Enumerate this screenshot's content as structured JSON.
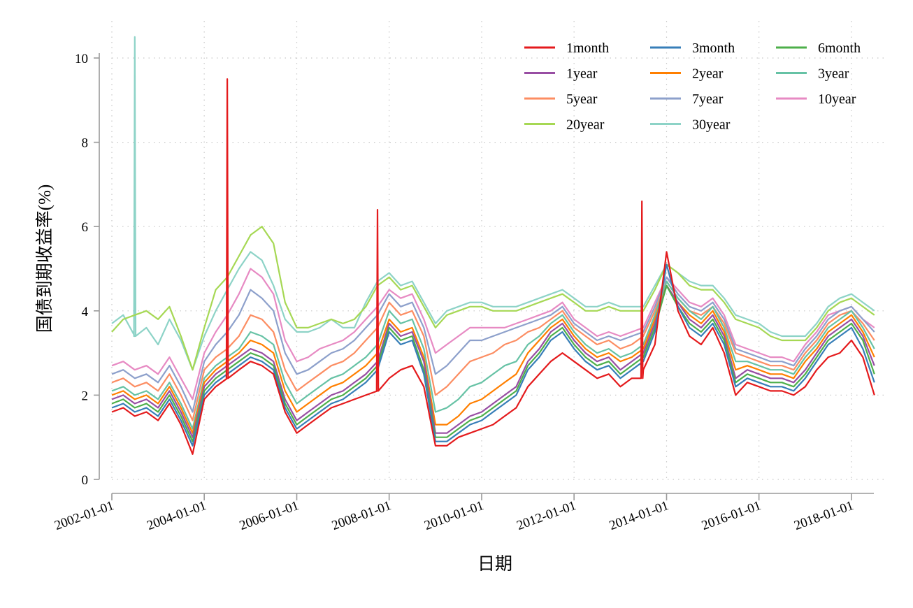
{
  "chart_data": {
    "type": "line",
    "title": "",
    "xlabel": "日期",
    "ylabel": "国债到期收益率(%)",
    "xlim": [
      "2002-01-01",
      "2018-07-01"
    ],
    "ylim": [
      -0.3,
      10.6
    ],
    "x_ticks": [
      "2002-01-01",
      "2004-01-01",
      "2006-01-01",
      "2008-01-01",
      "2010-01-01",
      "2012-01-01",
      "2014-01-01",
      "2016-01-01",
      "2018-01-01"
    ],
    "y_ticks": [
      "0",
      "2",
      "4",
      "6",
      "8",
      "10"
    ],
    "grid": true,
    "legend_position": "top-right",
    "x": [
      "2002-01-01",
      "2002-04-01",
      "2002-07-01",
      "2002-10-01",
      "2003-01-01",
      "2003-04-01",
      "2003-07-01",
      "2003-10-01",
      "2004-01-01",
      "2004-04-01",
      "2004-07-01",
      "2004-10-01",
      "2005-01-01",
      "2005-04-01",
      "2005-07-01",
      "2005-10-01",
      "2006-01-01",
      "2006-04-01",
      "2006-07-01",
      "2006-10-01",
      "2007-01-01",
      "2007-04-01",
      "2007-07-01",
      "2007-10-01",
      "2008-01-01",
      "2008-04-01",
      "2008-07-01",
      "2008-10-01",
      "2009-01-01",
      "2009-04-01",
      "2009-07-01",
      "2009-10-01",
      "2010-01-01",
      "2010-04-01",
      "2010-07-01",
      "2010-10-01",
      "2011-01-01",
      "2011-04-01",
      "2011-07-01",
      "2011-10-01",
      "2012-01-01",
      "2012-04-01",
      "2012-07-01",
      "2012-10-01",
      "2013-01-01",
      "2013-04-01",
      "2013-07-01",
      "2013-10-01",
      "2014-01-01",
      "2014-04-01",
      "2014-07-01",
      "2014-10-01",
      "2015-01-01",
      "2015-04-01",
      "2015-07-01",
      "2015-10-01",
      "2016-01-01",
      "2016-04-01",
      "2016-07-01",
      "2016-10-01",
      "2017-01-01",
      "2017-04-01",
      "2017-07-01",
      "2017-10-01",
      "2018-01-01",
      "2018-04-01",
      "2018-07-01"
    ],
    "series": [
      {
        "name": "1month",
        "color": "#e41a1c",
        "values": [
          1.6,
          1.7,
          1.5,
          1.6,
          1.4,
          1.8,
          1.3,
          0.6,
          1.9,
          2.2,
          2.4,
          2.6,
          2.8,
          2.7,
          2.5,
          1.6,
          1.1,
          1.3,
          1.5,
          1.7,
          1.8,
          1.9,
          2.0,
          2.1,
          2.4,
          2.6,
          2.7,
          2.2,
          0.8,
          0.8,
          1.0,
          1.1,
          1.2,
          1.3,
          1.5,
          1.7,
          2.2,
          2.5,
          2.8,
          3.0,
          2.8,
          2.6,
          2.4,
          2.5,
          2.2,
          2.4,
          2.6,
          3.2,
          5.4,
          4.0,
          3.4,
          3.2,
          3.6,
          3.0,
          2.0,
          2.3,
          2.2,
          2.1,
          2.1,
          2.0,
          2.2,
          2.6,
          2.9,
          3.0,
          3.3,
          2.9,
          2.0
        ]
      },
      {
        "name": "3month",
        "color": "#377eb8",
        "values": [
          1.7,
          1.8,
          1.6,
          1.7,
          1.5,
          1.9,
          1.4,
          0.8,
          2.0,
          2.3,
          2.5,
          2.7,
          2.9,
          2.8,
          2.6,
          1.7,
          1.2,
          1.4,
          1.6,
          1.8,
          1.9,
          2.1,
          2.3,
          2.6,
          3.5,
          3.2,
          3.3,
          2.5,
          0.9,
          0.9,
          1.1,
          1.3,
          1.4,
          1.6,
          1.8,
          2.0,
          2.6,
          2.9,
          3.3,
          3.5,
          3.1,
          2.8,
          2.6,
          2.7,
          2.4,
          2.6,
          2.8,
          3.5,
          5.1,
          4.1,
          3.6,
          3.4,
          3.7,
          3.2,
          2.2,
          2.4,
          2.3,
          2.2,
          2.2,
          2.1,
          2.4,
          2.8,
          3.2,
          3.4,
          3.6,
          3.1,
          2.3
        ]
      },
      {
        "name": "6month",
        "color": "#4daf4a",
        "values": [
          1.8,
          1.9,
          1.7,
          1.8,
          1.6,
          2.0,
          1.5,
          0.9,
          2.1,
          2.4,
          2.6,
          2.8,
          3.0,
          2.9,
          2.7,
          1.8,
          1.3,
          1.5,
          1.7,
          1.9,
          2.0,
          2.2,
          2.4,
          2.7,
          3.6,
          3.3,
          3.4,
          2.6,
          1.0,
          1.0,
          1.2,
          1.4,
          1.5,
          1.7,
          1.9,
          2.1,
          2.7,
          3.0,
          3.4,
          3.6,
          3.2,
          2.9,
          2.7,
          2.8,
          2.5,
          2.7,
          2.9,
          3.6,
          4.6,
          4.1,
          3.7,
          3.5,
          3.8,
          3.3,
          2.3,
          2.5,
          2.4,
          2.3,
          2.3,
          2.2,
          2.5,
          2.9,
          3.3,
          3.5,
          3.7,
          3.3,
          2.5
        ]
      },
      {
        "name": "1year",
        "color": "#984ea3",
        "values": [
          1.9,
          2.0,
          1.8,
          1.9,
          1.7,
          2.1,
          1.6,
          1.0,
          2.2,
          2.5,
          2.7,
          2.9,
          3.1,
          3.0,
          2.8,
          1.9,
          1.4,
          1.6,
          1.8,
          2.0,
          2.1,
          2.3,
          2.5,
          2.8,
          3.7,
          3.4,
          3.5,
          2.8,
          1.1,
          1.1,
          1.3,
          1.5,
          1.6,
          1.8,
          2.0,
          2.2,
          2.8,
          3.1,
          3.5,
          3.7,
          3.3,
          3.0,
          2.8,
          2.9,
          2.6,
          2.8,
          3.0,
          3.7,
          4.6,
          4.2,
          3.8,
          3.6,
          3.9,
          3.4,
          2.4,
          2.6,
          2.5,
          2.4,
          2.4,
          2.3,
          2.6,
          3.0,
          3.4,
          3.6,
          3.8,
          3.4,
          2.7
        ]
      },
      {
        "name": "2year",
        "color": "#ff7f00",
        "values": [
          2.0,
          2.1,
          1.9,
          2.0,
          1.8,
          2.2,
          1.7,
          1.1,
          2.3,
          2.6,
          2.8,
          3.0,
          3.3,
          3.2,
          3.0,
          2.1,
          1.6,
          1.8,
          2.0,
          2.2,
          2.3,
          2.5,
          2.7,
          3.0,
          3.8,
          3.5,
          3.6,
          2.9,
          1.3,
          1.3,
          1.5,
          1.8,
          1.9,
          2.1,
          2.3,
          2.5,
          3.0,
          3.3,
          3.6,
          3.8,
          3.4,
          3.1,
          2.9,
          3.0,
          2.8,
          2.9,
          3.1,
          3.8,
          4.6,
          4.2,
          3.9,
          3.7,
          4.0,
          3.5,
          2.6,
          2.7,
          2.6,
          2.5,
          2.5,
          2.4,
          2.8,
          3.1,
          3.5,
          3.7,
          3.9,
          3.5,
          2.9
        ]
      },
      {
        "name": "3year",
        "color": "#66c2a5",
        "values": [
          2.1,
          2.2,
          2.0,
          2.1,
          1.9,
          2.3,
          1.8,
          1.2,
          2.4,
          2.7,
          2.9,
          3.1,
          3.5,
          3.4,
          3.2,
          2.3,
          1.8,
          2.0,
          2.2,
          2.4,
          2.5,
          2.7,
          2.9,
          3.2,
          4.0,
          3.7,
          3.8,
          3.1,
          1.6,
          1.7,
          1.9,
          2.2,
          2.3,
          2.5,
          2.7,
          2.8,
          3.2,
          3.4,
          3.7,
          3.9,
          3.5,
          3.2,
          3.0,
          3.1,
          2.9,
          3.0,
          3.2,
          3.9,
          4.7,
          4.3,
          4.0,
          3.8,
          4.1,
          3.6,
          2.8,
          2.8,
          2.7,
          2.6,
          2.6,
          2.5,
          2.9,
          3.2,
          3.6,
          3.8,
          4.0,
          3.6,
          3.1
        ]
      },
      {
        "name": "5year",
        "color": "#fc8d62",
        "values": [
          2.3,
          2.4,
          2.2,
          2.3,
          2.1,
          2.5,
          2.0,
          1.4,
          2.6,
          2.9,
          3.1,
          3.4,
          3.9,
          3.8,
          3.5,
          2.6,
          2.1,
          2.3,
          2.5,
          2.7,
          2.8,
          3.0,
          3.3,
          3.6,
          4.2,
          3.9,
          4.0,
          3.4,
          2.0,
          2.2,
          2.5,
          2.8,
          2.9,
          3.0,
          3.2,
          3.3,
          3.5,
          3.6,
          3.8,
          4.0,
          3.6,
          3.4,
          3.2,
          3.3,
          3.1,
          3.2,
          3.4,
          4.0,
          4.7,
          4.3,
          4.0,
          3.9,
          4.1,
          3.7,
          3.0,
          2.9,
          2.8,
          2.7,
          2.7,
          2.6,
          3.0,
          3.3,
          3.7,
          3.9,
          4.0,
          3.7,
          3.3
        ]
      },
      {
        "name": "7year",
        "color": "#8da0cb",
        "values": [
          2.5,
          2.6,
          2.4,
          2.5,
          2.3,
          2.7,
          2.2,
          1.6,
          2.8,
          3.2,
          3.5,
          3.9,
          4.5,
          4.3,
          4.0,
          3.0,
          2.5,
          2.6,
          2.8,
          3.0,
          3.1,
          3.3,
          3.6,
          3.9,
          4.4,
          4.1,
          4.2,
          3.6,
          2.5,
          2.7,
          3.0,
          3.3,
          3.3,
          3.4,
          3.5,
          3.6,
          3.7,
          3.8,
          3.9,
          4.1,
          3.7,
          3.5,
          3.3,
          3.4,
          3.3,
          3.4,
          3.5,
          4.1,
          4.8,
          4.4,
          4.1,
          4.0,
          4.2,
          3.8,
          3.1,
          3.0,
          2.9,
          2.8,
          2.8,
          2.7,
          3.1,
          3.4,
          3.8,
          4.0,
          4.1,
          3.8,
          3.5
        ]
      },
      {
        "name": "10year",
        "color": "#e78ac3",
        "values": [
          2.7,
          2.8,
          2.6,
          2.7,
          2.5,
          2.9,
          2.4,
          1.9,
          3.0,
          3.5,
          3.9,
          4.4,
          5.0,
          4.8,
          4.4,
          3.3,
          2.8,
          2.9,
          3.1,
          3.2,
          3.3,
          3.5,
          3.8,
          4.1,
          4.5,
          4.3,
          4.4,
          3.8,
          3.0,
          3.2,
          3.4,
          3.6,
          3.6,
          3.6,
          3.6,
          3.7,
          3.8,
          3.9,
          4.0,
          4.2,
          3.8,
          3.6,
          3.4,
          3.5,
          3.4,
          3.5,
          3.6,
          4.2,
          4.8,
          4.5,
          4.2,
          4.1,
          4.3,
          3.9,
          3.2,
          3.1,
          3.0,
          2.9,
          2.9,
          2.8,
          3.2,
          3.5,
          3.9,
          4.0,
          4.1,
          3.8,
          3.6
        ]
      },
      {
        "name": "20year",
        "color": "#a6d854",
        "values": [
          3.5,
          3.8,
          3.9,
          4.0,
          3.8,
          4.1,
          3.4,
          2.6,
          3.6,
          4.5,
          4.8,
          5.3,
          5.8,
          6.0,
          5.6,
          4.2,
          3.6,
          3.6,
          3.7,
          3.8,
          3.7,
          3.8,
          4.1,
          4.6,
          4.8,
          4.5,
          4.6,
          4.1,
          3.6,
          3.9,
          4.0,
          4.1,
          4.1,
          4.0,
          4.0,
          4.0,
          4.1,
          4.2,
          4.3,
          4.4,
          4.2,
          4.0,
          4.0,
          4.1,
          4.0,
          4.0,
          4.0,
          4.5,
          5.1,
          4.9,
          4.6,
          4.5,
          4.5,
          4.2,
          3.8,
          3.7,
          3.6,
          3.4,
          3.3,
          3.3,
          3.3,
          3.6,
          4.0,
          4.2,
          4.3,
          4.1,
          3.9
        ]
      },
      {
        "name": "30year",
        "color": "#8dd3c7",
        "values": [
          3.7,
          3.9,
          3.4,
          3.6,
          3.2,
          3.8,
          3.3,
          2.6,
          3.4,
          4.0,
          4.5,
          5.0,
          5.4,
          5.2,
          4.6,
          3.8,
          3.5,
          3.5,
          3.6,
          3.8,
          3.6,
          3.6,
          4.2,
          4.7,
          4.9,
          4.6,
          4.7,
          4.2,
          3.7,
          4.0,
          4.1,
          4.2,
          4.2,
          4.1,
          4.1,
          4.1,
          4.2,
          4.3,
          4.4,
          4.5,
          4.3,
          4.1,
          4.1,
          4.2,
          4.1,
          4.1,
          4.1,
          4.6,
          5.1,
          4.9,
          4.7,
          4.6,
          4.6,
          4.3,
          3.9,
          3.8,
          3.7,
          3.5,
          3.4,
          3.4,
          3.4,
          3.7,
          4.1,
          4.3,
          4.4,
          4.2,
          4.0
        ]
      }
    ],
    "annotations": [
      {
        "series": "30year",
        "date": "2002-07-01",
        "value": 10.5
      },
      {
        "series": "1month",
        "date": "2004-07-01",
        "value": 9.5
      },
      {
        "series": "1month",
        "date": "2007-10-01",
        "value": 6.4
      },
      {
        "series": "1month",
        "date": "2013-06-20",
        "value": 6.6
      }
    ]
  }
}
